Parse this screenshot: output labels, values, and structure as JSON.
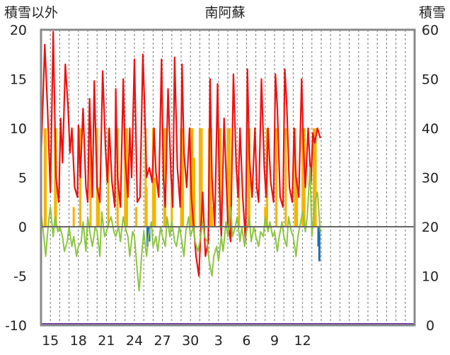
{
  "chart_data": {
    "type": "line",
    "title": "南阿蘇",
    "ylabel_left": "積雪以外",
    "ylabel_right": "積雪",
    "ylim_left": [
      -10,
      20
    ],
    "ylim_right": [
      0,
      60
    ],
    "yticks_left": [
      "20",
      "15",
      "10",
      "5",
      "0",
      "-5",
      "-10"
    ],
    "yticks_right": [
      "60",
      "50",
      "40",
      "30",
      "20",
      "10",
      "0"
    ],
    "x_range": [
      0,
      40
    ],
    "xticks": [
      {
        "label": "15",
        "x": 1
      },
      {
        "label": "18",
        "x": 4
      },
      {
        "label": "21",
        "x": 7
      },
      {
        "label": "24",
        "x": 10
      },
      {
        "label": "27",
        "x": 13
      },
      {
        "label": "30",
        "x": 16
      },
      {
        "label": "3",
        "x": 19
      },
      {
        "label": "6",
        "x": 22
      },
      {
        "label": "9",
        "x": 25
      },
      {
        "label": "12",
        "x": 28
      }
    ],
    "grid": "vertical dashed daily",
    "colors": {
      "temperature": "#ee1111",
      "sunshine": "#f5b400",
      "precip_temp": "#8cc63f",
      "snow_series": "#7030a0",
      "negative": "#1f6fb2",
      "zero_line": "#666666",
      "frame": "#888888"
    },
    "series": [
      {
        "key": "temperature",
        "x": [
          0.0,
          0.4,
          0.7,
          1.0,
          1.3,
          1.6,
          1.9,
          2.1,
          2.3,
          2.6,
          2.9,
          3.1,
          3.3,
          3.6,
          3.9,
          4.0,
          4.2,
          4.5,
          4.8,
          5.0,
          5.2,
          5.5,
          5.7,
          6.0,
          6.3,
          6.6,
          6.9,
          7.1,
          7.3,
          7.6,
          7.9,
          8.0,
          8.2,
          8.5,
          8.8,
          9.0,
          9.3,
          9.5,
          9.7,
          10.0,
          10.3,
          10.6,
          10.9,
          11.1,
          11.3,
          11.6,
          11.9,
          12.1,
          12.3,
          12.6,
          12.9,
          13.1,
          13.3,
          13.6,
          13.9,
          14.1,
          14.3,
          14.6,
          14.9,
          15.1,
          15.3,
          15.6,
          15.9,
          16.1,
          16.3,
          16.6,
          16.9,
          17.1,
          17.3,
          17.6,
          17.9,
          18.1,
          18.3,
          18.6,
          18.9,
          19.1,
          19.3,
          19.6,
          19.9,
          20.0,
          20.3,
          20.6,
          20.9,
          21.1,
          21.3,
          21.6,
          21.9,
          22.1,
          22.3,
          22.6,
          22.9,
          23.1,
          23.3,
          23.6,
          23.9,
          24.1,
          24.3,
          24.6,
          24.9,
          25.1,
          25.3,
          25.6,
          25.9,
          26.1,
          26.3,
          26.6,
          26.9,
          27.1,
          27.3,
          27.6,
          27.9,
          28.1,
          28.3,
          28.6,
          28.9,
          29.1,
          29.3,
          29.6,
          29.9
        ],
        "values": [
          7.0,
          18.5,
          12.0,
          3.5,
          19.8,
          5.0,
          2.5,
          11.0,
          6.5,
          16.5,
          12.0,
          7.5,
          10.0,
          4.0,
          3.0,
          10.3,
          5.0,
          12.0,
          4.0,
          2.5,
          13.0,
          3.0,
          14.8,
          4.0,
          2.5,
          15.8,
          8.0,
          4.5,
          10.0,
          4.5,
          2.0,
          14.0,
          5.0,
          2.0,
          15.0,
          7.0,
          3.0,
          10.0,
          5.0,
          17.0,
          2.5,
          3.0,
          17.5,
          12.0,
          5.0,
          6.0,
          4.5,
          10.0,
          5.5,
          3.0,
          17.0,
          5.0,
          2.0,
          14.0,
          5.5,
          2.0,
          17.2,
          6.0,
          2.0,
          16.5,
          7.5,
          4.0,
          10.0,
          3.0,
          0.5,
          -3.0,
          -5.0,
          -0.5,
          3.5,
          -3.0,
          -1.5,
          15.0,
          5.0,
          0.0,
          14.5,
          4.0,
          -1.0,
          11.0,
          3.0,
          0.5,
          -1.5,
          15.5,
          6.0,
          3.0,
          10.0,
          3.0,
          -1.5,
          16.0,
          7.0,
          3.0,
          10.0,
          4.0,
          2.5,
          15.0,
          6.0,
          3.0,
          10.0,
          4.5,
          2.5,
          15.5,
          12.0,
          3.0,
          2.0,
          16.0,
          12.5,
          4.0,
          2.5,
          10.0,
          5.0,
          3.0,
          15.0,
          8.0,
          4.0,
          10.0,
          4.5,
          9.5,
          8.5,
          10.0,
          9.0
        ]
      },
      {
        "key": "precip_temp",
        "x": [
          0.0,
          0.3,
          0.5,
          0.8,
          1.0,
          1.3,
          1.5,
          1.8,
          2.0,
          2.3,
          2.5,
          2.8,
          3.0,
          3.3,
          3.5,
          3.8,
          4.0,
          4.3,
          4.5,
          4.8,
          5.0,
          5.3,
          5.5,
          5.8,
          6.0,
          6.3,
          6.5,
          6.8,
          7.0,
          7.3,
          7.5,
          7.8,
          8.0,
          8.3,
          8.5,
          8.8,
          9.0,
          9.3,
          9.5,
          9.8,
          10.0,
          10.3,
          10.5,
          10.8,
          11.0,
          11.3,
          11.5,
          11.8,
          12.0,
          12.3,
          12.5,
          12.8,
          13.0,
          13.3,
          13.5,
          13.8,
          14.0,
          14.3,
          14.5,
          14.8,
          15.0,
          15.3,
          15.5,
          15.8,
          16.0,
          16.3,
          16.5,
          16.8,
          17.0,
          17.3,
          17.5,
          17.8,
          18.0,
          18.3,
          18.5,
          18.8,
          19.0,
          19.3,
          19.5,
          19.8,
          20.0,
          20.3,
          20.5,
          20.8,
          21.0,
          21.3,
          21.5,
          21.8,
          22.0,
          22.3,
          22.5,
          22.8,
          23.0,
          23.3,
          23.5,
          23.8,
          24.0,
          24.3,
          24.5,
          24.8,
          25.0,
          25.3,
          25.5,
          25.8,
          26.0,
          26.3,
          26.5,
          26.8,
          27.0,
          27.3,
          27.5,
          27.8,
          28.0,
          28.3,
          28.5,
          28.8,
          29.0,
          29.3,
          29.6,
          29.9
        ],
        "values": [
          1.5,
          -1.0,
          -3.0,
          0.5,
          2.0,
          -1.0,
          1.0,
          -0.5,
          0.0,
          -1.0,
          -2.5,
          -1.5,
          0.0,
          -2.0,
          -1.0,
          -3.0,
          -2.0,
          -1.5,
          0.5,
          -2.5,
          1.0,
          -1.0,
          -2.0,
          0.0,
          -0.5,
          -3.0,
          1.5,
          -1.0,
          -0.5,
          0.5,
          1.0,
          -0.5,
          -1.0,
          0.0,
          -1.5,
          1.0,
          0.0,
          -1.0,
          -3.0,
          -0.5,
          -1.0,
          -4.5,
          -6.5,
          -2.5,
          -0.5,
          -3.0,
          -1.0,
          0.5,
          -2.0,
          -1.0,
          -2.5,
          0.0,
          -1.0,
          -2.0,
          1.0,
          -1.0,
          0.5,
          -1.5,
          -2.0,
          0.0,
          -1.0,
          -3.0,
          -0.5,
          1.0,
          -1.0,
          0.0,
          -1.5,
          -2.5,
          -1.5,
          0.5,
          -1.0,
          -1.5,
          -3.5,
          -5.0,
          -3.0,
          -2.0,
          -3.5,
          -1.0,
          -2.5,
          0.5,
          -1.0,
          2.0,
          -1.0,
          0.0,
          1.0,
          -1.5,
          0.0,
          -2.0,
          -0.5,
          1.0,
          -1.5,
          0.0,
          -1.0,
          -2.0,
          -0.5,
          -1.0,
          1.0,
          -0.5,
          0.5,
          -1.0,
          -0.5,
          -2.5,
          -1.0,
          0.5,
          -1.0,
          -2.0,
          1.0,
          -0.5,
          -1.0,
          -3.0,
          -1.0,
          0.5,
          1.5,
          -0.5,
          1.0,
          6.0,
          -1.0,
          2.5,
          3.5,
          -0.5
        ]
      }
    ],
    "bars": {
      "key": "sunshine",
      "x": [
        0.4,
        0.5,
        1.5,
        1.6,
        3.5,
        4.2,
        5.3,
        6.0,
        6.2,
        7.2,
        8.2,
        9.0,
        9.2,
        10.2,
        11.2,
        11.3,
        12.0,
        12.2,
        13.2,
        13.3,
        14.0,
        15.0,
        15.2,
        16.0,
        16.2,
        16.4,
        17.0,
        17.2,
        18.0,
        18.2,
        18.3,
        19.2,
        20.0,
        20.2,
        21.2,
        22.2,
        22.3,
        24.0,
        24.2,
        25.2,
        26.2,
        27.2,
        27.4,
        28.0,
        28.2,
        29.2,
        29.4
      ],
      "values": [
        10,
        10,
        10,
        10,
        2,
        10,
        10,
        10,
        4,
        10,
        10,
        10,
        10,
        2,
        10,
        4,
        10,
        5,
        10,
        10,
        4,
        10,
        10,
        10,
        10,
        7,
        10,
        10,
        10,
        10,
        2,
        10,
        10,
        10,
        5,
        10,
        10,
        2,
        10,
        10,
        10,
        10,
        5,
        10,
        10,
        10,
        10
      ]
    },
    "negative_bars": {
      "key": "negative",
      "x": [
        11.4,
        11.6,
        29.7,
        29.8
      ],
      "values": [
        -2.0,
        -1.5,
        -2.0,
        -3.5
      ]
    },
    "baseline_series": {
      "key": "snow_series",
      "value": 0
    }
  }
}
